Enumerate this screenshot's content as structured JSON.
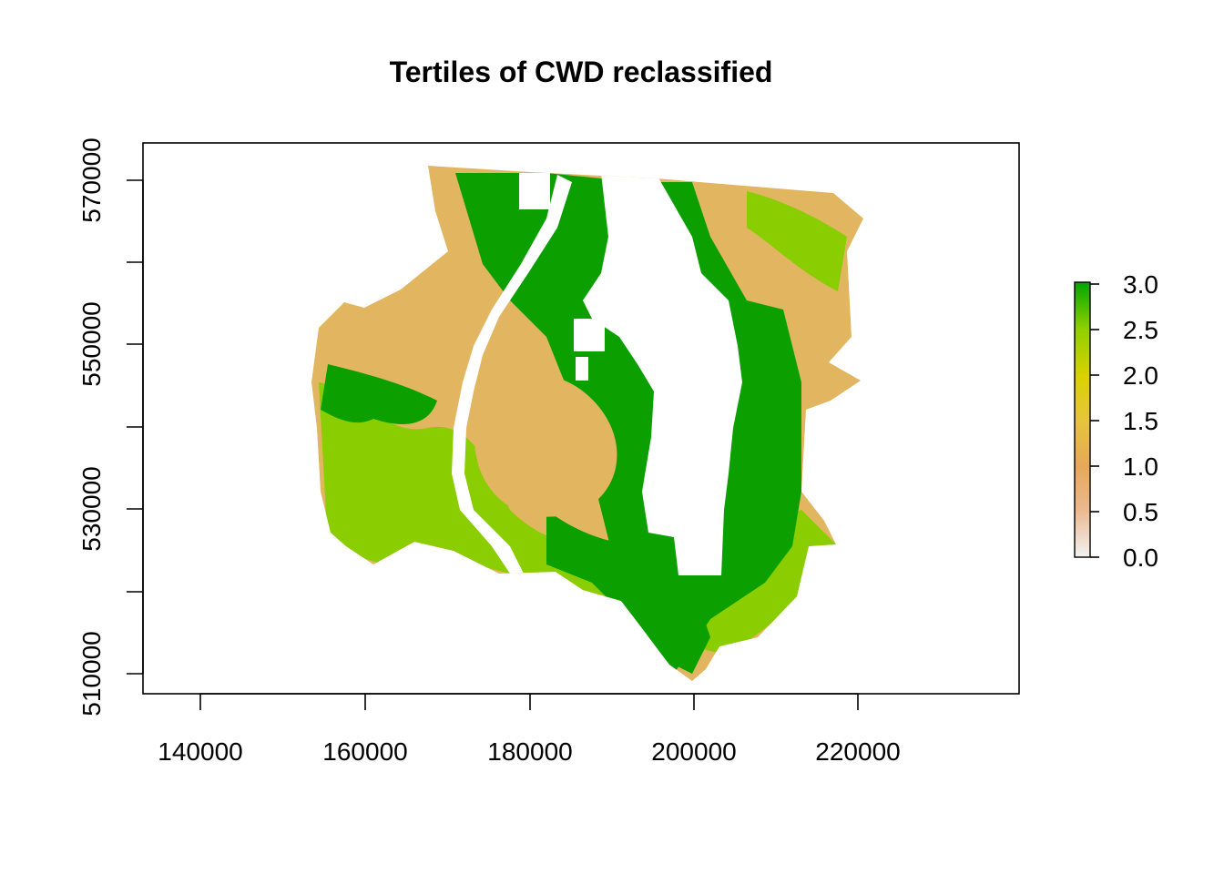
{
  "title": "Tertiles of CWD reclassified",
  "x_axis": {
    "ticks": [
      "140000",
      "160000",
      "180000",
      "200000",
      "220000"
    ]
  },
  "y_axis": {
    "ticks": [
      "510000",
      "530000",
      "550000",
      "570000"
    ]
  },
  "legend": {
    "ticks": [
      "0.0",
      "0.5",
      "1.0",
      "1.5",
      "2.0",
      "2.5",
      "3.0"
    ],
    "colors": [
      "#F2F2F2",
      "#EBB98F",
      "#E6A85A",
      "#E6C53A",
      "#D9D200",
      "#8FD000",
      "#00A600"
    ]
  },
  "map": {
    "classes": [
      {
        "value": 1,
        "color": "#E2B660"
      },
      {
        "value": 2,
        "color": "#8ACD00"
      },
      {
        "value": 3,
        "color": "#0BA000"
      }
    ],
    "no_data_color": "#FFFFFF"
  },
  "chart_data": {
    "type": "heatmap",
    "title": "Tertiles of CWD reclassified",
    "xlim": [
      133000,
      239000
    ],
    "ylim": [
      505000,
      575000
    ],
    "x_ticks": [
      140000,
      160000,
      180000,
      200000,
      220000
    ],
    "y_ticks": [
      510000,
      530000,
      550000,
      570000
    ],
    "value_range": [
      0,
      3
    ],
    "legend_placement": "right",
    "grid": false
  }
}
